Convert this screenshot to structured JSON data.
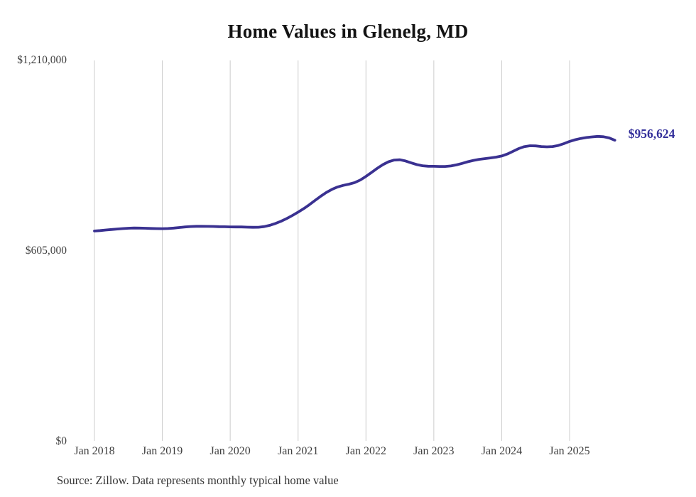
{
  "title": "Home Values in Glenelg, MD",
  "source_note": "Source: Zillow. Data represents monthly typical home value",
  "colors": {
    "line": "#3a3191",
    "end_label": "#332f9b",
    "grid": "#cccccc",
    "title_text": "#131313",
    "axis_text": "#3f3f3f",
    "source_text": "#333333",
    "background": "#ffffff"
  },
  "chart_data": {
    "type": "line",
    "title": "Home Values in Glenelg, MD",
    "series_name": "Monthly typical home value",
    "x_start": "2018-01",
    "x_interval": "month",
    "n_points": 93,
    "x_end": "2025-09",
    "ylim": [
      0,
      1210000
    ],
    "grid": "vertical",
    "legend": "none",
    "y_ticks": [
      {
        "label": "$0",
        "value": 0
      },
      {
        "label": "$605,000",
        "value": 605000
      },
      {
        "label": "$1,210,000",
        "value": 1210000
      }
    ],
    "x_ticks": [
      {
        "label": "Jan 2018",
        "month_index": 0
      },
      {
        "label": "Jan 2019",
        "month_index": 12
      },
      {
        "label": "Jan 2020",
        "month_index": 24
      },
      {
        "label": "Jan 2021",
        "month_index": 36
      },
      {
        "label": "Jan 2022",
        "month_index": 48
      },
      {
        "label": "Jan 2023",
        "month_index": 60
      },
      {
        "label": "Jan 2024",
        "month_index": 72
      },
      {
        "label": "Jan 2025",
        "month_index": 84
      }
    ],
    "values": [
      668500,
      669800,
      671500,
      673200,
      674800,
      676200,
      677300,
      677900,
      677800,
      677200,
      676500,
      676000,
      675800,
      676400,
      677800,
      679600,
      681400,
      682700,
      683300,
      683400,
      683200,
      682800,
      682300,
      681900,
      681600,
      681400,
      681200,
      680700,
      680100,
      680400,
      682400,
      686500,
      692300,
      699600,
      708200,
      717800,
      728200,
      739500,
      752000,
      765500,
      778900,
      790800,
      800700,
      808300,
      813400,
      817200,
      822100,
      830400,
      841700,
      854600,
      867600,
      879300,
      888400,
      893800,
      894700,
      890900,
      884800,
      879200,
      875600,
      874100,
      873800,
      873300,
      873400,
      874900,
      878300,
      883100,
      888200,
      892700,
      896000,
      898300,
      900400,
      902900,
      906600,
      912900,
      921400,
      930100,
      936400,
      939100,
      938600,
      936600,
      935800,
      936700,
      939900,
      945800,
      952800,
      958300,
      962300,
      965200,
      967400,
      968900,
      967800,
      963900,
      956624
    ],
    "last_value": 956624,
    "last_value_label": "$956,624"
  }
}
